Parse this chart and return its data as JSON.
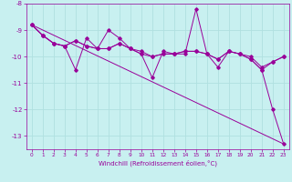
{
  "xlabel": "Windchill (Refroidissement éolien,°C)",
  "background_color": "#c8f0f0",
  "grid_color": "#b0e0e0",
  "line_color": "#990099",
  "ylim": [
    -13.5,
    -8.0
  ],
  "xlim": [
    -0.5,
    23.5
  ],
  "yticks": [
    -13,
    -12,
    -11,
    -10,
    -9,
    -8
  ],
  "xticks": [
    0,
    1,
    2,
    3,
    4,
    5,
    6,
    7,
    8,
    9,
    10,
    11,
    12,
    13,
    14,
    15,
    16,
    17,
    18,
    19,
    20,
    21,
    22,
    23
  ],
  "series1": [
    -8.8,
    -9.2,
    -9.5,
    -9.6,
    -10.5,
    -9.3,
    -9.7,
    -9.0,
    -9.3,
    -9.7,
    -9.9,
    -10.8,
    -9.8,
    -9.9,
    -9.9,
    -8.2,
    -9.9,
    -10.4,
    -9.8,
    -9.9,
    -10.1,
    -10.5,
    -12.0,
    -13.3
  ],
  "series2": [
    -8.8,
    -9.2,
    -9.5,
    -9.6,
    -9.4,
    -9.6,
    -9.7,
    -9.7,
    -9.5,
    -9.7,
    -9.9,
    -10.0,
    -9.9,
    -9.9,
    -9.8,
    -9.8,
    -9.9,
    -10.1,
    -9.8,
    -9.9,
    -10.1,
    -10.5,
    -10.2,
    -10.0
  ],
  "series3": [
    -8.8,
    -9.2,
    -9.5,
    -9.6,
    -9.4,
    -9.6,
    -9.7,
    -9.7,
    -9.5,
    -9.7,
    -9.8,
    -10.0,
    -9.9,
    -9.9,
    -9.8,
    -9.8,
    -9.9,
    -10.1,
    -9.8,
    -9.9,
    -10.0,
    -10.4,
    -10.2,
    -10.0
  ],
  "series4_x": [
    0,
    23
  ],
  "series4_y": [
    -8.8,
    -13.3
  ]
}
